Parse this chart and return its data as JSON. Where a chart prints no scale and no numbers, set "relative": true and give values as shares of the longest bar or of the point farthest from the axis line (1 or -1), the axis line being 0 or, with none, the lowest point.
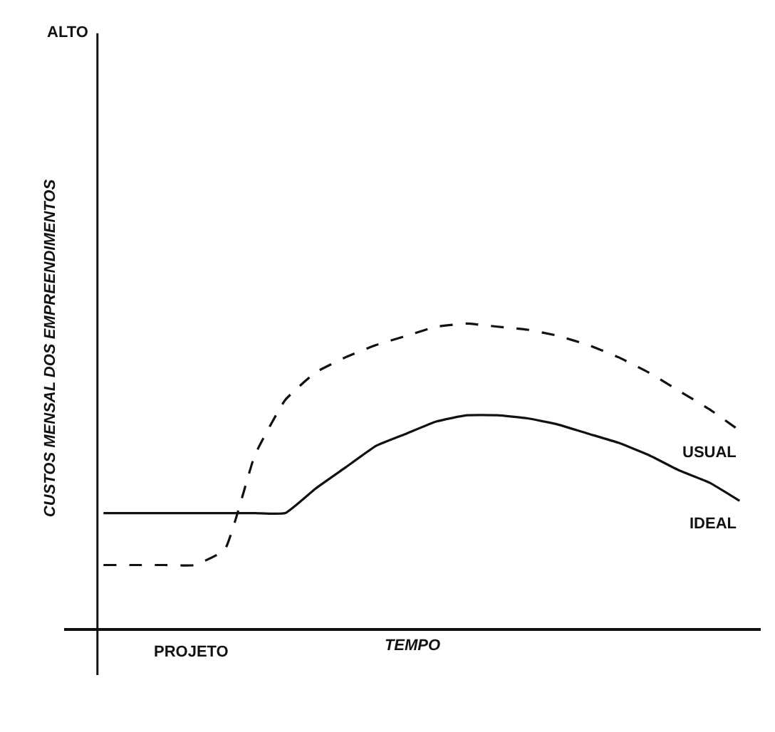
{
  "chart_data": {
    "type": "line",
    "relative": true,
    "xlabel": "TEMPO",
    "ylabel": "CUSTOS MENSAL DOS EMPREENDIMENTOS",
    "annotations": [
      "ALTO",
      "PROJETO"
    ],
    "categories": [
      null,
      null,
      null,
      null,
      null,
      null,
      null,
      null,
      null,
      null,
      null,
      null,
      null,
      null,
      null,
      null,
      null,
      null,
      null,
      null,
      null,
      null
    ],
    "series": [
      {
        "name": "USUAL",
        "color": "#111111",
        "line_style": "dashed",
        "values": [
          0.21,
          0.21,
          0.21,
          0.21,
          0.26,
          0.57,
          0.75,
          0.84,
          0.89,
          0.93,
          0.96,
          0.99,
          1.0,
          0.99,
          0.98,
          0.96,
          0.93,
          0.89,
          0.84,
          0.78,
          0.72,
          0.65
        ]
      },
      {
        "name": "IDEAL",
        "color": "#111111",
        "line_style": "solid",
        "values": [
          0.38,
          0.38,
          0.38,
          0.38,
          0.38,
          0.38,
          0.38,
          0.46,
          0.53,
          0.6,
          0.64,
          0.68,
          0.7,
          0.7,
          0.69,
          0.67,
          0.64,
          0.61,
          0.57,
          0.52,
          0.48,
          0.42
        ]
      }
    ],
    "marker": "none",
    "legend": false
  }
}
